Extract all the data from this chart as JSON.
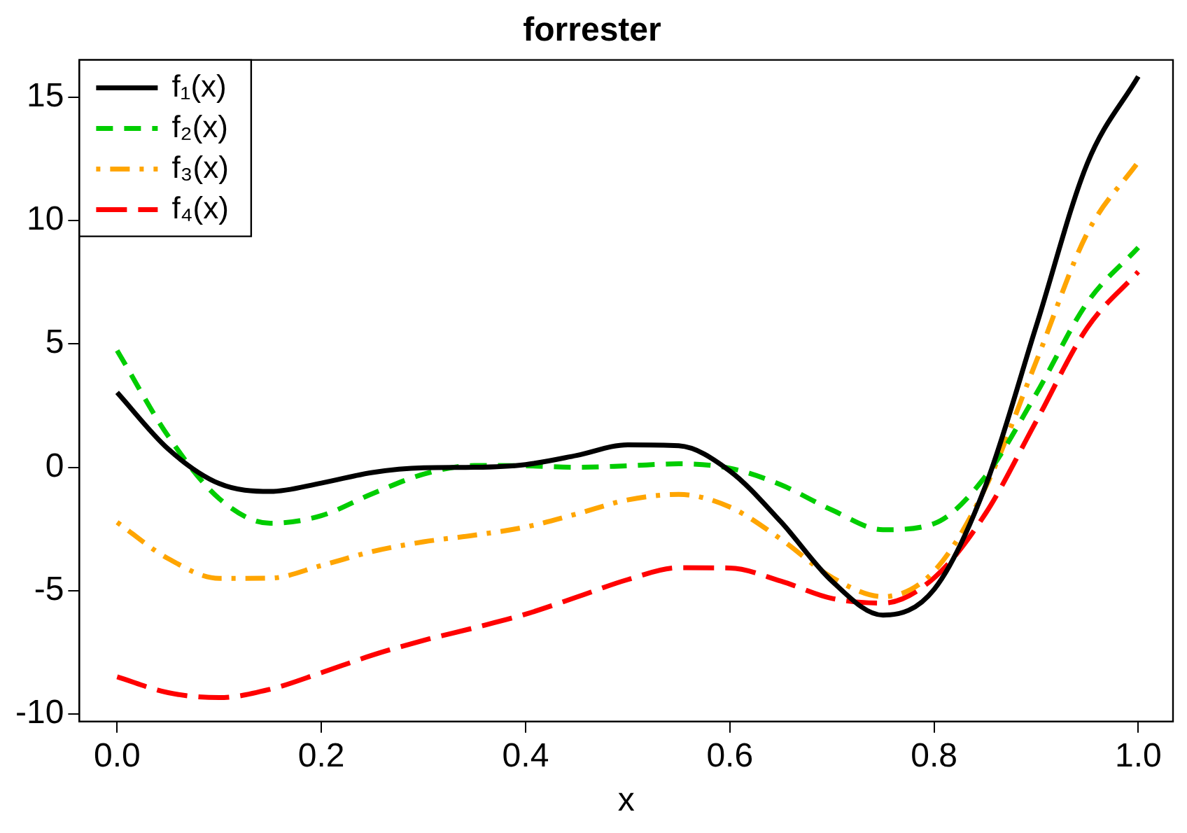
{
  "chart_data": {
    "type": "line",
    "title": "forrester",
    "xlabel": "x",
    "x": [
      0,
      0.05,
      0.1,
      0.15,
      0.2,
      0.25,
      0.3,
      0.35,
      0.4,
      0.45,
      0.5,
      0.55,
      0.6,
      0.65,
      0.7,
      0.75,
      0.8,
      0.85,
      0.9,
      0.95,
      1
    ],
    "series": [
      {
        "name": "f₁(x)",
        "color": "#000000",
        "line_style": "solid",
        "values": [
          3.03,
          0.74,
          -0.66,
          -0.98,
          -0.64,
          -0.21,
          -0.02,
          0.0,
          0.11,
          0.48,
          0.91,
          0.87,
          -0.15,
          -2.21,
          -4.61,
          -5.99,
          -4.95,
          -0.8,
          5.71,
          12.3,
          15.83
        ]
      },
      {
        "name": "f₂(x)",
        "color": "#00cd00",
        "line_style": "dashed",
        "values": [
          4.73,
          1.26,
          -1.27,
          -2.27,
          -1.96,
          -1.07,
          -0.28,
          0.07,
          0.06,
          0.0,
          0.06,
          0.14,
          -0.04,
          -0.71,
          -1.73,
          -2.53,
          -2.28,
          -0.39,
          2.97,
          6.67,
          8.9
        ]
      },
      {
        "name": "f₃(x)",
        "color": "#ffa500",
        "line_style": "dashdot",
        "values": [
          -2.23,
          -3.7,
          -4.5,
          -4.49,
          -3.98,
          -3.41,
          -3.02,
          -2.75,
          -2.42,
          -1.89,
          -1.32,
          -1.1,
          -1.61,
          -2.91,
          -4.46,
          -5.24,
          -4.21,
          -0.85,
          4.28,
          9.48,
          12.37
        ]
      },
      {
        "name": "f₄(x)",
        "color": "#ff0000",
        "line_style": "longdash",
        "values": [
          -8.49,
          -9.13,
          -9.33,
          -8.99,
          -8.32,
          -7.61,
          -7.01,
          -6.5,
          -5.95,
          -5.26,
          -4.55,
          -4.07,
          -4.08,
          -4.61,
          -5.31,
          -5.5,
          -4.48,
          -1.9,
          1.86,
          5.65,
          7.92
        ]
      }
    ],
    "xlim": [
      -0.037,
      1.034
    ],
    "xticks": [
      {
        "value": 0,
        "label": "0.0"
      },
      {
        "value": 0.2,
        "label": "0.2"
      },
      {
        "value": 0.4,
        "label": "0.4"
      },
      {
        "value": 0.6,
        "label": "0.6"
      },
      {
        "value": 0.8,
        "label": "0.8"
      },
      {
        "value": 1,
        "label": "1.0"
      }
    ],
    "ylim": [
      -10.3,
      16.5
    ],
    "yticks": [
      -10,
      -5,
      0,
      5,
      10,
      15
    ],
    "legend": "top left",
    "marker": "none"
  }
}
